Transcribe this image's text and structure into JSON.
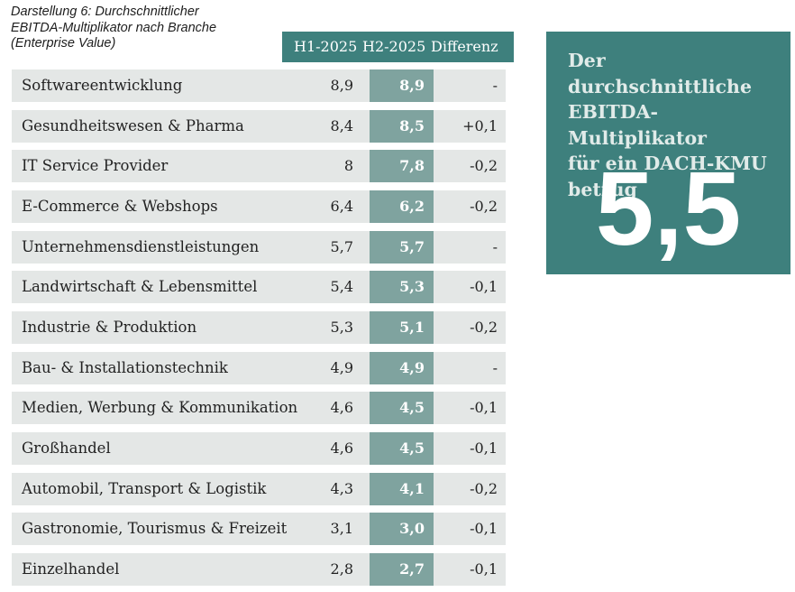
{
  "caption": {
    "line1": "Darstellung 6: Durchschnittlicher",
    "line2": "EBITDA-Multiplikator nach Branche",
    "line3": "(Enterprise Value)"
  },
  "chart_data": {
    "type": "table",
    "title": "Darstellung 6: Durchschnittlicher EBITDA-Multiplikator nach Branche (Enterprise Value)",
    "columns": [
      "H1-2025",
      "H2-2025",
      "Differenz"
    ],
    "rows": [
      {
        "label": "Softwareentwicklung",
        "h1": "8,9",
        "h2": "8,9",
        "diff": "-"
      },
      {
        "label": "Gesundheitswesen & Pharma",
        "h1": "8,4",
        "h2": "8,5",
        "diff": "+0,1"
      },
      {
        "label": "IT Service Provider",
        "h1": "8",
        "h2": "7,8",
        "diff": "-0,2"
      },
      {
        "label": "E-Commerce & Webshops",
        "h1": "6,4",
        "h2": "6,2",
        "diff": "-0,2"
      },
      {
        "label": "Unternehmensdienstleistungen",
        "h1": "5,7",
        "h2": "5,7",
        "diff": "-"
      },
      {
        "label": "Landwirtschaft & Lebensmittel",
        "h1": "5,4",
        "h2": "5,3",
        "diff": "-0,1"
      },
      {
        "label": "Industrie & Produktion",
        "h1": "5,3",
        "h2": "5,1",
        "diff": "-0,2"
      },
      {
        "label": "Bau- & Installationstechnik",
        "h1": "4,9",
        "h2": "4,9",
        "diff": "-"
      },
      {
        "label": "Medien, Werbung & Kommunikation",
        "h1": "4,6",
        "h2": "4,5",
        "diff": "-0,1"
      },
      {
        "label": "Großhandel",
        "h1": "4,6",
        "h2": "4,5",
        "diff": "-0,1"
      },
      {
        "label": "Automobil, Transport & Logistik",
        "h1": "4,3",
        "h2": "4,1",
        "diff": "-0,2"
      },
      {
        "label": "Gastronomie, Tourismus & Freizeit",
        "h1": "3,1",
        "h2": "3,0",
        "diff": "-0,1"
      },
      {
        "label": "Einzelhandel",
        "h1": "2,8",
        "h2": "2,7",
        "diff": "-0,1"
      }
    ]
  },
  "callout": {
    "line1": "Der durchschnittliche",
    "line2": "EBITDA-Multiplikator",
    "line3": "für ein DACH-KMU",
    "line4": "betrug",
    "value": "5,5"
  },
  "colors": {
    "accent": "#3e807d",
    "h2_column": "#7fa39f",
    "row_background": "#e4e7e6"
  }
}
